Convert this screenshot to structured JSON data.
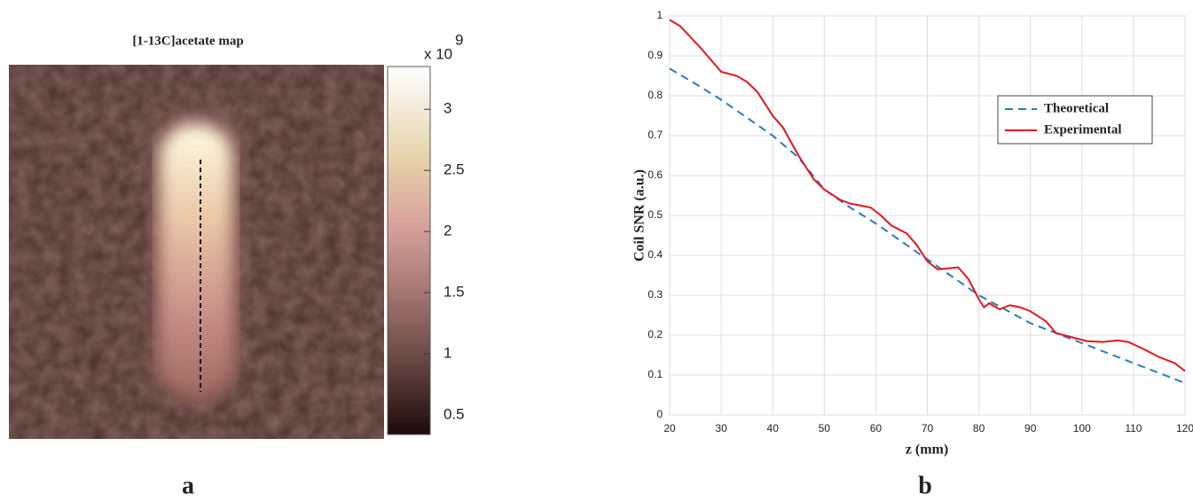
{
  "chart_data": [
    {
      "type": "image",
      "title": "[1-13C]acetate map",
      "panel_label": "a",
      "clim": [
        0.34,
        3.35
      ],
      "cticks": [
        0.5,
        1,
        1.5,
        2,
        2.5,
        3
      ],
      "multiplier": {
        "base": "x 10",
        "exponent": "9"
      }
    },
    {
      "type": "line",
      "panel_label": "b",
      "x_label": "z (mm)",
      "y_label": "Coil SNR (a.u.)",
      "xlim": [
        20,
        120
      ],
      "ylim": [
        0,
        1
      ],
      "xticks": [
        20,
        30,
        40,
        50,
        60,
        70,
        80,
        90,
        100,
        110,
        120
      ],
      "yticks": [
        0,
        0.1,
        0.2,
        0.3,
        0.4,
        0.5,
        0.6,
        0.7,
        0.8,
        0.9,
        1
      ],
      "grid": true,
      "legend": "upper right",
      "series": [
        {
          "name": "Theoretical",
          "color": "#2b7bba",
          "dash": true,
          "x": [
            20,
            25,
            30,
            35,
            40,
            45,
            50,
            55,
            60,
            65,
            70,
            75,
            80,
            85,
            90,
            95,
            100,
            105,
            110,
            115,
            120
          ],
          "values": [
            0.868,
            0.83,
            0.79,
            0.745,
            0.7,
            0.645,
            0.565,
            0.52,
            0.48,
            0.435,
            0.39,
            0.345,
            0.3,
            0.265,
            0.23,
            0.205,
            0.18,
            0.155,
            0.13,
            0.105,
            0.08
          ]
        },
        {
          "name": "Experimental",
          "color": "#e8141c",
          "dash": false,
          "x": [
            20,
            22,
            26,
            30,
            33,
            35,
            37,
            40,
            42,
            45,
            48,
            50,
            53,
            55,
            57,
            59,
            61,
            63,
            66,
            68,
            70,
            72,
            76,
            78,
            80,
            81,
            82,
            84,
            86,
            88,
            90,
            93,
            95,
            98,
            101,
            104,
            107,
            109,
            112,
            115,
            118,
            120
          ],
          "values": [
            0.99,
            0.975,
            0.92,
            0.86,
            0.85,
            0.835,
            0.81,
            0.75,
            0.72,
            0.65,
            0.59,
            0.565,
            0.54,
            0.53,
            0.525,
            0.52,
            0.5,
            0.475,
            0.455,
            0.425,
            0.385,
            0.365,
            0.37,
            0.34,
            0.29,
            0.27,
            0.28,
            0.265,
            0.275,
            0.27,
            0.26,
            0.235,
            0.205,
            0.195,
            0.185,
            0.183,
            0.187,
            0.183,
            0.165,
            0.145,
            0.13,
            0.11
          ]
        }
      ]
    }
  ]
}
